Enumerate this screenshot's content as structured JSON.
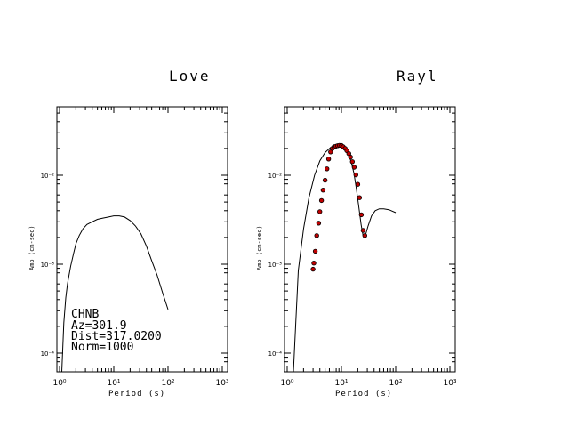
{
  "chart_data": [
    {
      "type": "line",
      "title": "Love",
      "xlabel": "Period (s)",
      "ylabel": "Amp (cm-sec)",
      "xscale": "log",
      "yscale": "log",
      "xlim": [
        1,
        1000
      ],
      "ylim": [
        5e-05,
        0.07
      ],
      "x_tick_labels": [
        "10⁰",
        "10¹",
        "10²",
        "10³"
      ],
      "y_tick_labels": [
        "10⁻⁴",
        "10⁻³",
        "10⁻²"
      ],
      "annotation": [
        "CHNB",
        "Az=301.9",
        "Dist=317.0200",
        "Norm=1000"
      ],
      "series": [
        {
          "style": "line",
          "x": [
            1.0,
            1.1,
            1.2,
            1.3,
            1.4,
            1.6,
            1.8,
            2.0,
            2.3,
            2.7,
            3.2,
            4.0,
            5.0,
            6.3,
            8.0,
            10.0,
            12.6,
            15.8,
            20.0,
            25.0,
            31.6,
            40.0,
            50.0,
            63.0,
            79.0,
            100.0
          ],
          "y": [
            6e-05,
            6e-05,
            0.00022,
            0.00042,
            0.0006,
            0.00095,
            0.0013,
            0.0017,
            0.0021,
            0.0025,
            0.0028,
            0.003,
            0.0032,
            0.0033,
            0.0034,
            0.0035,
            0.0035,
            0.0034,
            0.0031,
            0.0027,
            0.0022,
            0.0016,
            0.0011,
            0.00075,
            0.00048,
            0.00031
          ]
        }
      ]
    },
    {
      "type": "line",
      "title": "Rayl",
      "xlabel": "Period (s)",
      "ylabel": "Amp (cm-sec)",
      "xscale": "log",
      "yscale": "log",
      "xlim": [
        1,
        1000
      ],
      "ylim": [
        5e-05,
        0.07
      ],
      "x_tick_labels": [
        "10⁰",
        "10¹",
        "10²",
        "10³"
      ],
      "y_tick_labels": [
        "10⁻⁴",
        "10⁻³",
        "10⁻²"
      ],
      "series": [
        {
          "style": "line",
          "x": [
            1.0,
            1.15,
            1.3,
            1.6,
            2.0,
            2.5,
            3.2,
            4.0,
            5.0,
            6.3,
            8.0,
            9.0,
            10.0,
            11.5,
            13.0,
            15.0,
            17.0,
            19.0,
            21.0,
            23.0,
            25.0,
            27.0,
            31.0,
            36.0,
            42.0,
            50.0,
            60.0,
            75.0,
            100.0
          ],
          "y": [
            6e-05,
            6e-05,
            6e-05,
            0.00085,
            0.0025,
            0.0055,
            0.01,
            0.0145,
            0.018,
            0.0205,
            0.0216,
            0.0218,
            0.0215,
            0.02,
            0.018,
            0.0145,
            0.0105,
            0.0068,
            0.0043,
            0.0028,
            0.0021,
            0.002,
            0.0027,
            0.0035,
            0.004,
            0.0042,
            0.0042,
            0.0041,
            0.0038
          ]
        },
        {
          "style": "points",
          "color": "#c00000",
          "x": [
            3.0,
            3.1,
            3.3,
            3.5,
            3.8,
            4.0,
            4.3,
            4.6,
            5.0,
            5.4,
            5.8,
            6.3,
            6.8,
            7.3,
            7.9,
            8.5,
            9.2,
            10.0,
            10.8,
            11.7,
            12.6,
            13.7,
            14.7,
            15.9,
            17.2,
            18.5,
            20.0,
            21.5,
            23.3,
            25.1,
            27.0
          ],
          "y": [
            0.00088,
            0.00103,
            0.0014,
            0.0021,
            0.0029,
            0.0039,
            0.0052,
            0.0068,
            0.0088,
            0.0118,
            0.0152,
            0.0183,
            0.02,
            0.0209,
            0.0212,
            0.0215,
            0.0217,
            0.0216,
            0.0209,
            0.02,
            0.0189,
            0.0175,
            0.016,
            0.0142,
            0.0123,
            0.0101,
            0.0079,
            0.0056,
            0.0036,
            0.0024,
            0.0021
          ]
        }
      ]
    }
  ]
}
